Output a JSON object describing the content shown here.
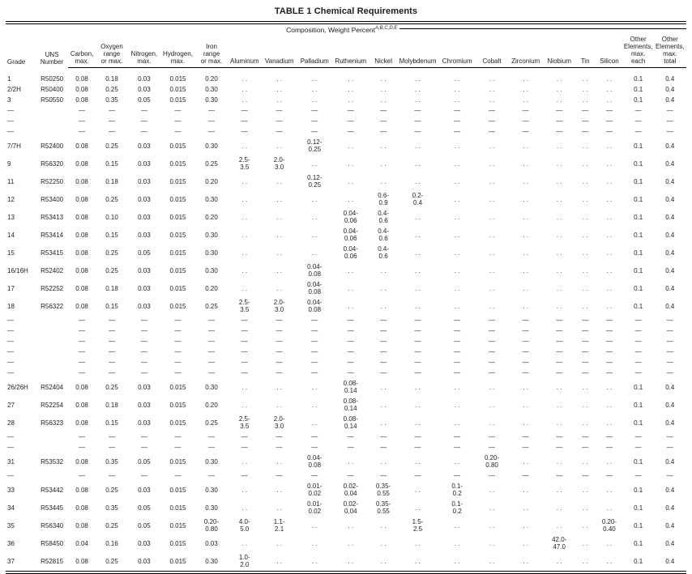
{
  "title": "TABLE 1 Chemical Requirements",
  "subtitle": {
    "text": "Composition, Weight Percent",
    "superscript": "A,B,C,D,E"
  },
  "table": {
    "columns": [
      {
        "key": "grade",
        "label": "Grade"
      },
      {
        "key": "uns-number",
        "label": "UNS\nNumber"
      },
      {
        "key": "carbon",
        "label": "Carbon,\nmax."
      },
      {
        "key": "oxygen",
        "label": "Oxygen\nrange\nor max."
      },
      {
        "key": "nitrogen",
        "label": "Nitrogen,\nmax."
      },
      {
        "key": "hydrogen",
        "label": "Hydrogen,\nmax."
      },
      {
        "key": "iron",
        "label": "Iron\nrange\nor max."
      },
      {
        "key": "aluminum",
        "label": "Aluminum"
      },
      {
        "key": "vanadium",
        "label": "Vanadium"
      },
      {
        "key": "palladium",
        "label": "Palladium"
      },
      {
        "key": "ruthenium",
        "label": "Ruthenium"
      },
      {
        "key": "nickel",
        "label": "Nickel"
      },
      {
        "key": "molybdenum",
        "label": "Molybdenum"
      },
      {
        "key": "chromium",
        "label": "Chromium"
      },
      {
        "key": "cobalt",
        "label": "Cobalt"
      },
      {
        "key": "zirconium",
        "label": "Zirconium"
      },
      {
        "key": "niobium",
        "label": "Niobium"
      },
      {
        "key": "tin",
        "label": "Tin"
      },
      {
        "key": "silicon",
        "label": "Silicon"
      },
      {
        "key": "other-elements-max-each",
        "label": "Other\nElements,\nmax.\neach"
      },
      {
        "key": "other-elements-max-total",
        "label": "Other\nElements,\nmax.\ntotal"
      }
    ],
    "rows": [
      [
        "1",
        "R50250",
        "0.08",
        "0.18",
        "0.03",
        "0.015",
        "0.20",
        ". .",
        ". .",
        ". .",
        ". .",
        ". .",
        ". .",
        ". .",
        ". .",
        ". .",
        ". .",
        ". .",
        ". .",
        "0.1",
        "0.4"
      ],
      [
        "2/2H",
        "R50400",
        "0.08",
        "0.25",
        "0.03",
        "0.015",
        "0.30",
        ". .",
        ". .",
        ". .",
        ". .",
        ". .",
        ". .",
        ". .",
        ". .",
        ". .",
        ". .",
        ". .",
        ". .",
        "0.1",
        "0.4"
      ],
      [
        "3",
        "R50550",
        "0.08",
        "0.35",
        "0.05",
        "0.015",
        "0.30",
        ". .",
        ". .",
        ". .",
        ". .",
        ". .",
        ". .",
        ". .",
        ". .",
        ". .",
        ". .",
        ". .",
        ". .",
        "0.1",
        "0.4"
      ],
      [
        "—",
        "",
        "—",
        "—",
        "—",
        "—",
        "—",
        "—",
        "—",
        "—",
        "—",
        "—",
        "—",
        "—",
        "—",
        "—",
        "—",
        "—",
        "—",
        "—",
        "—"
      ],
      [
        "—",
        "",
        "—",
        "—",
        "—",
        "—",
        "—",
        "—",
        "—",
        "—",
        "—",
        "—",
        "—",
        "—",
        "—",
        "—",
        "—",
        "—",
        "—",
        "—",
        "—"
      ],
      [
        "—",
        "",
        "—",
        "—",
        "—",
        "—",
        "—",
        "—",
        "—",
        "—",
        "—",
        "—",
        "—",
        "—",
        "—",
        "—",
        "—",
        "—",
        "—",
        "—",
        "—"
      ],
      [
        "7/7H",
        "R52400",
        "0.08",
        "0.25",
        "0.03",
        "0.015",
        "0.30",
        ". .",
        ". .",
        "0.12-\n0.25",
        ". .",
        ". .",
        ". .",
        ". .",
        ". .",
        ". .",
        ". .",
        ". .",
        ". .",
        "0.1",
        "0.4"
      ],
      [
        "9",
        "R56320",
        "0.08",
        "0.15",
        "0.03",
        "0.015",
        "0.25",
        "2.5-\n3.5",
        "2.0-\n3.0",
        ". .",
        ". .",
        ". .",
        ". .",
        ". .",
        ". .",
        ". .",
        ". .",
        ". .",
        ". .",
        "0.1",
        "0.4"
      ],
      [
        "11",
        "R52250",
        "0.08",
        "0.18",
        "0.03",
        "0.015",
        "0.20",
        ". .",
        ". .",
        "0.12-\n0.25",
        ". .",
        ". .",
        ". .",
        ". .",
        ". .",
        ". .",
        ". .",
        ". .",
        ". .",
        "0.1",
        "0.4"
      ],
      [
        "12",
        "R53400",
        "0.08",
        "0.25",
        "0.03",
        "0.015",
        "0.30",
        ". .",
        ". .",
        ". .",
        ". .",
        "0.6-\n0.9",
        "0.2-\n0.4",
        ". .",
        ". .",
        ". .",
        ". .",
        ". .",
        ". .",
        "0.1",
        "0.4"
      ],
      [
        "13",
        "R53413",
        "0.08",
        "0.10",
        "0.03",
        "0.015",
        "0.20",
        ". .",
        ". .",
        ". .",
        "0.04-\n0.06",
        "0.4-\n0.6",
        ". .",
        ". .",
        ". .",
        ". .",
        ". .",
        ". .",
        ". .",
        "0.1",
        "0.4"
      ],
      [
        "14",
        "R53414",
        "0.08",
        "0.15",
        "0.03",
        "0.015",
        "0.30",
        ". .",
        ". .",
        ". .",
        "0.04-\n0.06",
        "0.4-\n0.6",
        ". .",
        ". .",
        ". .",
        ". .",
        ". .",
        ". .",
        ". .",
        "0.1",
        "0.4"
      ],
      [
        "15",
        "R53415",
        "0.08",
        "0.25",
        "0.05",
        "0.015",
        "0.30",
        ". .",
        ". .",
        ". .",
        "0.04-\n0.06",
        "0.4-\n0.6",
        ". .",
        ". .",
        ". .",
        ". .",
        ". .",
        ". .",
        ". .",
        "0.1",
        "0.4"
      ],
      [
        "16/16H",
        "R52402",
        "0.08",
        "0.25",
        "0.03",
        "0.015",
        "0.30",
        ". .",
        ". .",
        "0.04-\n0.08",
        ". .",
        ". .",
        ". .",
        ". .",
        ". .",
        ". .",
        ". .",
        ". .",
        ". .",
        "0.1",
        "0.4"
      ],
      [
        "17",
        "R52252",
        "0.08",
        "0.18",
        "0.03",
        "0.015",
        "0.20",
        ". .",
        ". .",
        "0.04-\n0.08",
        ". .",
        ". .",
        ". .",
        ". .",
        ". .",
        ". .",
        ". .",
        ". .",
        ". .",
        "0.1",
        "0.4"
      ],
      [
        "18",
        "R56322",
        "0.08",
        "0.15",
        "0.03",
        "0.015",
        "0.25",
        "2.5-\n3.5",
        "2.0-\n3.0",
        "0.04-\n0.08",
        ". .",
        ". .",
        ". .",
        ". .",
        ". .",
        ". .",
        ". .",
        ". .",
        ". .",
        "0.1",
        "0.4"
      ],
      [
        "—",
        "",
        "—",
        "—",
        "—",
        "—",
        "—",
        "—",
        "—",
        "—",
        "—",
        "—",
        "—",
        "—",
        "—",
        "—",
        "—",
        "—",
        "—",
        "—",
        "—"
      ],
      [
        "—",
        "",
        "—",
        "—",
        "—",
        "—",
        "—",
        "—",
        "—",
        "—",
        "—",
        "—",
        "—",
        "—",
        "—",
        "—",
        "—",
        "—",
        "—",
        "—",
        "—"
      ],
      [
        "—",
        "",
        "—",
        "—",
        "—",
        "—",
        "—",
        "—",
        "—",
        "—",
        "—",
        "—",
        "—",
        "—",
        "—",
        "—",
        "—",
        "—",
        "—",
        "—",
        "—"
      ],
      [
        "—",
        "",
        "—",
        "—",
        "—",
        "—",
        "—",
        "—",
        "—",
        "—",
        "—",
        "—",
        "—",
        "—",
        "—",
        "—",
        "—",
        "—",
        "—",
        "—",
        "—"
      ],
      [
        "—",
        "",
        "—",
        "—",
        "—",
        "—",
        "—",
        "—",
        "—",
        "—",
        "—",
        "—",
        "—",
        "—",
        "—",
        "—",
        "—",
        "—",
        "—",
        "—",
        "—"
      ],
      [
        "—",
        "",
        "—",
        "—",
        "—",
        "—",
        "—",
        "—",
        "—",
        "—",
        "—",
        "—",
        "—",
        "—",
        "—",
        "—",
        "—",
        "—",
        "—",
        "—",
        "—"
      ],
      [
        "26/26H",
        "R52404",
        "0.08",
        "0.25",
        "0.03",
        "0.015",
        "0.30",
        ". .",
        ". .",
        ". .",
        "0.08-\n0.14",
        ". .",
        ". .",
        ". .",
        ". .",
        ". .",
        ". .",
        ". .",
        ". .",
        "0.1",
        "0.4"
      ],
      [
        "27",
        "R52254",
        "0.08",
        "0.18",
        "0.03",
        "0.015",
        "0.20",
        ". .",
        ". .",
        ". .",
        "0.08-\n0.14",
        ". .",
        ". .",
        ". .",
        ". .",
        ". .",
        ". .",
        ". .",
        ". .",
        "0.1",
        "0.4"
      ],
      [
        "28",
        "R56323",
        "0.08",
        "0.15",
        "0.03",
        "0.015",
        "0.25",
        "2.5-\n3.5",
        "2.0-\n3.0",
        ". .",
        "0.08-\n0.14",
        ". .",
        ". .",
        ". .",
        ". .",
        ". .",
        ". .",
        ". .",
        ". .",
        "0.1",
        "0.4"
      ],
      [
        "—",
        "",
        "—",
        "—",
        "—",
        "—",
        "—",
        "—",
        "—",
        "—",
        "—",
        "—",
        "—",
        "—",
        "—",
        "—",
        "—",
        "—",
        "—",
        "—",
        "—"
      ],
      [
        "—",
        "",
        "—",
        "—",
        "—",
        "—",
        "—",
        "—",
        "—",
        "—",
        "—",
        "—",
        "—",
        "—",
        "—",
        "—",
        "—",
        "—",
        "—",
        "—",
        "—"
      ],
      [
        "31",
        "R53532",
        "0.08",
        "0.35",
        "0.05",
        "0.015",
        "0.30",
        ". .",
        ". .",
        "0.04-\n0.08",
        ". .",
        ". .",
        ". .",
        ". .",
        "0.20-\n0.80",
        ". .",
        ". .",
        ". .",
        ". .",
        "0.1",
        "0.4"
      ],
      [
        "—",
        "",
        "—",
        "—",
        "—",
        "—",
        "—",
        "—",
        "—",
        "—",
        "—",
        "—",
        "—",
        "—",
        "—",
        "—",
        "—",
        "—",
        "—",
        "—",
        "—"
      ],
      [
        "33",
        "R53442",
        "0.08",
        "0.25",
        "0.03",
        "0.015",
        "0.30",
        ". .",
        ". .",
        "0.01-\n0.02",
        "0.02-\n0.04",
        "0.35-\n0.55",
        ". .",
        "0.1-\n0.2",
        ". .",
        ". .",
        ". .",
        ". .",
        ". .",
        "0.1",
        "0.4"
      ],
      [
        "34",
        "R53445",
        "0.08",
        "0.35",
        "0.05",
        "0.015",
        "0.30",
        ". .",
        ". .",
        "0.01-\n0.02",
        "0.02-\n0.04",
        "0.35-\n0.55",
        ". .",
        "0.1-\n0.2",
        ". .",
        ". .",
        ". .",
        ". .",
        ". .",
        "0.1",
        "0.4"
      ],
      [
        "35",
        "R56340",
        "0.08",
        "0.25",
        "0.05",
        "0.015",
        "0.20-\n0.80",
        "4.0-\n5.0",
        "1.1-\n2.1",
        ". .",
        ". .",
        ". .",
        "1.5-\n2.5",
        ". .",
        ". .",
        ". .",
        ". .",
        ". .",
        "0.20-\n0.40",
        "0.1",
        "0.4"
      ],
      [
        "36",
        "R58450",
        "0.04",
        "0.16",
        "0.03",
        "0.015",
        "0.03",
        ". .",
        ". .",
        ". .",
        ". .",
        ". .",
        ". .",
        ". .",
        ". .",
        ". .",
        "42.0-\n47.0",
        ". .",
        ". .",
        "0.1",
        "0.4"
      ],
      [
        "37",
        "R52815",
        "0.08",
        "0.25",
        "0.03",
        "0.015",
        "0.30",
        "1.0-\n2.0",
        ". .",
        ". .",
        ". .",
        ". .",
        ". .",
        ". .",
        ". .",
        ". .",
        ". .",
        ". .",
        ". .",
        "0.1",
        "0.4"
      ]
    ]
  }
}
